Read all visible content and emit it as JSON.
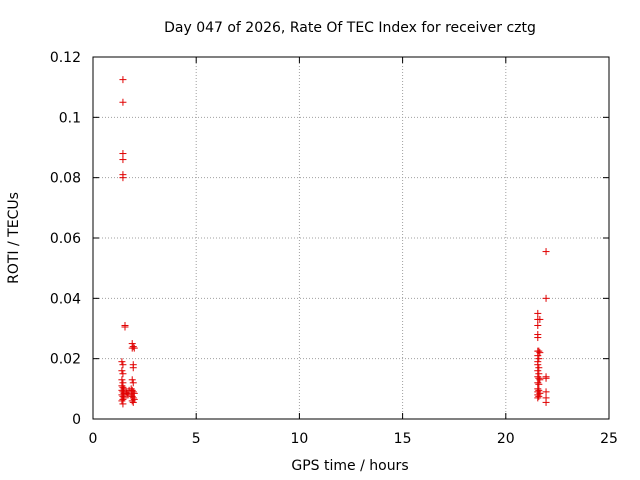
{
  "chart_data": {
    "type": "scatter",
    "title": "Day 047 of 2026, Rate Of TEC Index for receiver cztg",
    "xlabel": "GPS time / hours",
    "ylabel": "ROTI / TECUs",
    "xlim": [
      0,
      25
    ],
    "ylim": [
      0,
      0.12
    ],
    "x_ticks": [
      "0",
      "5",
      "10",
      "15",
      "20",
      "25"
    ],
    "y_ticks": [
      "0",
      "0.02",
      "0.04",
      "0.06",
      "0.08",
      "0.1",
      "0.12"
    ],
    "grid": true,
    "marker": "+",
    "color": "#e00000",
    "series": [
      {
        "points": [
          [
            1.45,
            0.1125
          ],
          [
            1.45,
            0.105
          ],
          [
            1.45,
            0.088
          ],
          [
            1.45,
            0.086
          ],
          [
            1.45,
            0.081
          ],
          [
            1.45,
            0.08
          ],
          [
            1.55,
            0.031
          ],
          [
            1.55,
            0.0305
          ],
          [
            1.4,
            0.019
          ],
          [
            1.45,
            0.018
          ],
          [
            1.4,
            0.016
          ],
          [
            1.45,
            0.015
          ],
          [
            1.4,
            0.013
          ],
          [
            1.45,
            0.012
          ],
          [
            1.4,
            0.011
          ],
          [
            1.45,
            0.0105
          ],
          [
            1.5,
            0.01
          ],
          [
            1.4,
            0.0095
          ],
          [
            1.45,
            0.009
          ],
          [
            1.5,
            0.0085
          ],
          [
            1.4,
            0.008
          ],
          [
            1.45,
            0.0075
          ],
          [
            1.5,
            0.007
          ],
          [
            1.45,
            0.0065
          ],
          [
            1.4,
            0.006
          ],
          [
            1.45,
            0.005
          ],
          [
            1.6,
            0.009
          ],
          [
            1.65,
            0.0085
          ],
          [
            1.7,
            0.008
          ],
          [
            1.75,
            0.0095
          ],
          [
            1.9,
            0.025
          ],
          [
            1.95,
            0.024
          ],
          [
            1.9,
            0.0235
          ],
          [
            2.0,
            0.0235
          ],
          [
            1.95,
            0.018
          ],
          [
            1.95,
            0.017
          ],
          [
            1.9,
            0.013
          ],
          [
            1.95,
            0.012
          ],
          [
            1.85,
            0.01
          ],
          [
            1.9,
            0.0095
          ],
          [
            1.95,
            0.009
          ],
          [
            2.0,
            0.0085
          ],
          [
            1.85,
            0.008
          ],
          [
            1.9,
            0.0075
          ],
          [
            1.95,
            0.007
          ],
          [
            2.0,
            0.0065
          ],
          [
            1.9,
            0.006
          ],
          [
            1.95,
            0.0055
          ],
          [
            21.95,
            0.0555
          ],
          [
            21.95,
            0.04
          ],
          [
            21.55,
            0.035
          ],
          [
            21.55,
            0.033
          ],
          [
            21.65,
            0.033
          ],
          [
            21.55,
            0.031
          ],
          [
            21.55,
            0.028
          ],
          [
            21.55,
            0.027
          ],
          [
            21.55,
            0.0225
          ],
          [
            21.6,
            0.0225
          ],
          [
            21.65,
            0.022
          ],
          [
            21.55,
            0.021
          ],
          [
            21.6,
            0.02
          ],
          [
            21.55,
            0.019
          ],
          [
            21.55,
            0.018
          ],
          [
            21.6,
            0.017
          ],
          [
            21.55,
            0.016
          ],
          [
            21.6,
            0.015
          ],
          [
            21.55,
            0.014
          ],
          [
            21.6,
            0.0135
          ],
          [
            21.65,
            0.013
          ],
          [
            21.55,
            0.012
          ],
          [
            21.6,
            0.0115
          ],
          [
            21.55,
            0.01
          ],
          [
            21.6,
            0.0095
          ],
          [
            21.55,
            0.009
          ],
          [
            21.65,
            0.0085
          ],
          [
            21.55,
            0.008
          ],
          [
            21.6,
            0.0075
          ],
          [
            21.55,
            0.007
          ],
          [
            21.95,
            0.014
          ],
          [
            21.95,
            0.0135
          ],
          [
            21.95,
            0.009
          ],
          [
            21.95,
            0.007
          ],
          [
            21.95,
            0.0055
          ]
        ]
      }
    ]
  }
}
